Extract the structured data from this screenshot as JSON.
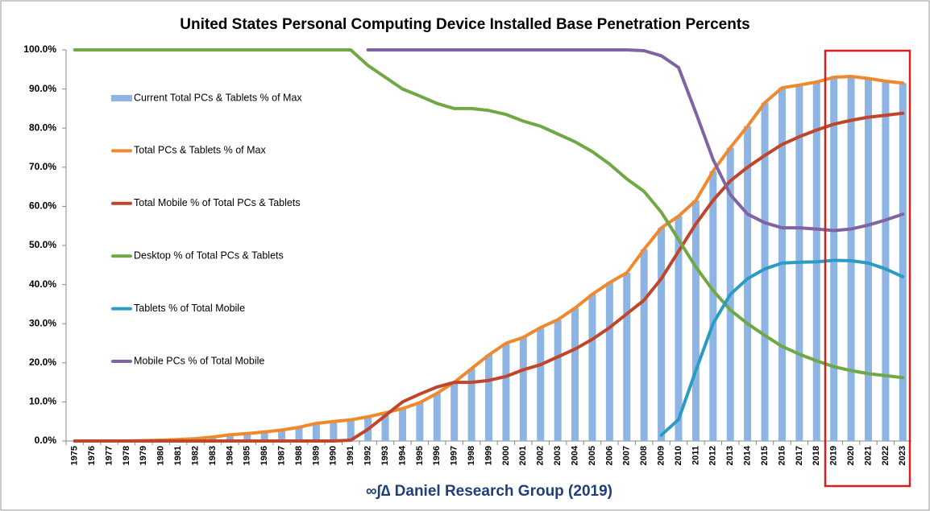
{
  "chart_data": {
    "type": "bar",
    "title": "United States Personal Computing Device Installed Base Penetration Percents",
    "footer": "∞∫∆ Daniel Research Group (2019)",
    "categories": [
      "1975",
      "1976",
      "1977",
      "1978",
      "1979",
      "1980",
      "1981",
      "1982",
      "1983",
      "1984",
      "1985",
      "1986",
      "1987",
      "1988",
      "1989",
      "1990",
      "1991",
      "1992",
      "1993",
      "1994",
      "1995",
      "1996",
      "1997",
      "1998",
      "1999",
      "2000",
      "2001",
      "2002",
      "2003",
      "2004",
      "2005",
      "2006",
      "2007",
      "2008",
      "2009",
      "2010",
      "2011",
      "2012",
      "2013",
      "2014",
      "2015",
      "2016",
      "2017",
      "2018",
      "2019",
      "2020",
      "2021",
      "2022",
      "2023"
    ],
    "ylim": [
      0,
      100
    ],
    "yticks": [
      {
        "value": 0,
        "label": "0.0%"
      },
      {
        "value": 10,
        "label": "10.0%"
      },
      {
        "value": 20,
        "label": "20.0%"
      },
      {
        "value": 30,
        "label": "30.0%"
      },
      {
        "value": 40,
        "label": "40.0%"
      },
      {
        "value": 50,
        "label": "50.0%"
      },
      {
        "value": 60,
        "label": "60.0%"
      },
      {
        "value": 70,
        "label": "70.0%"
      },
      {
        "value": 80,
        "label": "80.0%"
      },
      {
        "value": 90,
        "label": "90.0%"
      },
      {
        "value": 100,
        "label": "100.0%"
      }
    ],
    "grid": false,
    "legend": "left",
    "series": [
      {
        "name": "Current Total PCs & Tablets % of Max",
        "type": "bar",
        "color": "#8db4e2",
        "values": [
          0,
          0,
          0,
          0,
          0.1,
          0.2,
          0.4,
          0.6,
          1.0,
          1.6,
          1.9,
          2.3,
          2.8,
          3.5,
          4.5,
          5.0,
          5.4,
          6.2,
          7.2,
          8.3,
          9.8,
          12.2,
          15.0,
          18.5,
          22.0,
          25.0,
          26.5,
          29.0,
          31.0,
          34.0,
          37.5,
          40.5,
          43.0,
          49.0,
          54.5,
          57.5,
          61.5,
          69.0,
          75.0,
          80.5,
          86.5,
          90.3,
          91.0,
          91.8,
          93.0,
          93.2,
          92.7,
          92.0,
          91.5
        ]
      },
      {
        "name": "Total PCs & Tablets % of Max",
        "type": "line",
        "color": "#f0882e",
        "values": [
          0,
          0,
          0,
          0,
          0.1,
          0.2,
          0.4,
          0.6,
          1.0,
          1.6,
          1.9,
          2.3,
          2.8,
          3.5,
          4.5,
          5.0,
          5.4,
          6.2,
          7.2,
          8.3,
          9.8,
          12.2,
          15.0,
          18.5,
          22.0,
          25.0,
          26.5,
          29.0,
          31.0,
          34.0,
          37.5,
          40.5,
          43.0,
          49.0,
          54.5,
          57.5,
          61.5,
          69.0,
          75.0,
          80.5,
          86.5,
          90.3,
          91.0,
          91.8,
          93.0,
          93.2,
          92.7,
          92.0,
          91.5
        ]
      },
      {
        "name": "Total Mobile % of Total PCs & Tablets",
        "type": "line",
        "color": "#c0452a",
        "values": [
          0,
          0,
          0,
          0,
          0,
          0,
          0,
          0,
          0,
          0,
          0,
          0,
          0,
          0,
          0,
          0,
          0.2,
          3,
          6.5,
          10,
          12,
          13.8,
          15,
          15,
          15.5,
          16.5,
          18.2,
          19.5,
          21.5,
          23.5,
          26,
          29,
          32.5,
          36,
          41.5,
          48.5,
          55.5,
          61.5,
          66.5,
          70,
          73,
          75.8,
          77.8,
          79.5,
          81,
          82,
          82.8,
          83.3,
          83.8
        ]
      },
      {
        "name": "Desktop % of Total PCs & Tablets",
        "type": "line",
        "color": "#70a845",
        "values": [
          100,
          100,
          100,
          100,
          100,
          100,
          100,
          100,
          100,
          100,
          100,
          100,
          100,
          100,
          100,
          100,
          100,
          96,
          93,
          90,
          88.2,
          86.3,
          85,
          85,
          84.5,
          83.5,
          81.8,
          80.5,
          78.5,
          76.5,
          74,
          70.8,
          67,
          63.8,
          58.5,
          51.5,
          44.5,
          38.5,
          33.5,
          30,
          27,
          24.2,
          22.2,
          20.5,
          19,
          18,
          17.2,
          16.7,
          16.2
        ]
      },
      {
        "name": "Tablets % of Total Mobile",
        "type": "line",
        "color": "#2a9cc4",
        "values": [
          null,
          null,
          null,
          null,
          null,
          null,
          null,
          null,
          null,
          null,
          null,
          null,
          null,
          null,
          null,
          null,
          null,
          null,
          null,
          null,
          null,
          null,
          null,
          null,
          null,
          null,
          null,
          null,
          null,
          null,
          null,
          null,
          null,
          null,
          1.5,
          5.5,
          18,
          30,
          37.5,
          41.5,
          44,
          45.5,
          45.7,
          45.8,
          46.2,
          46.1,
          45.5,
          44,
          42
        ]
      },
      {
        "name": "Mobile PCs % of Total Mobile",
        "type": "line",
        "color": "#8064a2",
        "values": [
          null,
          null,
          null,
          null,
          null,
          null,
          null,
          null,
          null,
          null,
          null,
          null,
          null,
          null,
          null,
          null,
          null,
          100,
          100,
          100,
          100,
          100,
          100,
          100,
          100,
          100,
          100,
          100,
          100,
          100,
          100,
          100,
          100,
          99.8,
          98.5,
          95.5,
          84,
          72,
          63,
          58,
          55.8,
          54.5,
          54.5,
          54.2,
          53.8,
          54.2,
          55.2,
          56.5,
          58
        ]
      }
    ]
  }
}
